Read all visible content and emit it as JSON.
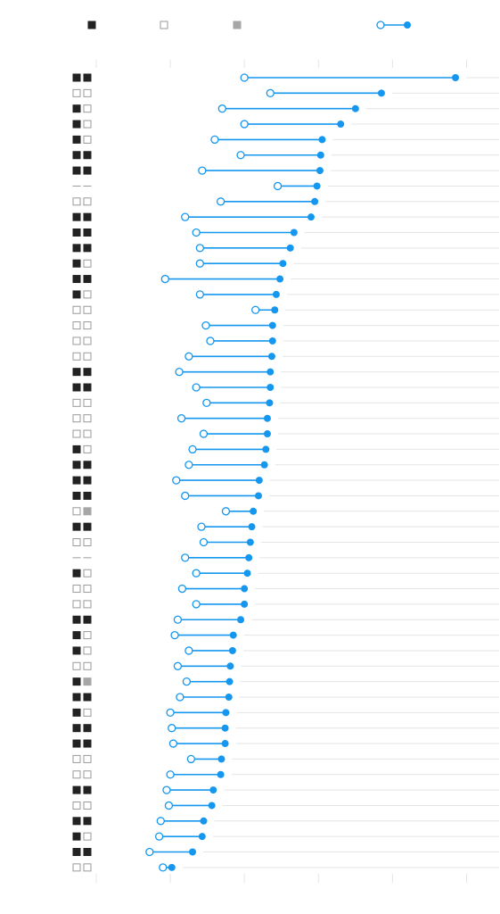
{
  "chart_data": {
    "type": "dot-range",
    "colors": {
      "accent": "#1597f0",
      "grid": "#e4e4e4",
      "filled": "#222222",
      "gray": "#a6a6a6",
      "empty_stroke": "#9a9a9a",
      "background": "#ffffff"
    },
    "legend": {
      "position": "top",
      "items": [
        {
          "swatch": "filled",
          "label": ""
        },
        {
          "swatch": "empty",
          "label": ""
        },
        {
          "swatch": "gray",
          "label": ""
        },
        {
          "swatch": "range",
          "label": ""
        }
      ]
    },
    "x_axis": {
      "min": 0,
      "max": 5.5,
      "ticks": [
        0,
        1,
        2,
        3,
        4,
        5
      ],
      "tick_labels": [
        "",
        "",
        "",
        "",
        "",
        ""
      ]
    },
    "rows": [
      {
        "start": 2.0,
        "end": 4.85,
        "m1": "f",
        "m2": "f"
      },
      {
        "start": 2.35,
        "end": 3.85,
        "m1": "e",
        "m2": "e"
      },
      {
        "start": 1.7,
        "end": 3.5,
        "m1": "f",
        "m2": "e"
      },
      {
        "start": 2.0,
        "end": 3.3,
        "m1": "f",
        "m2": "e"
      },
      {
        "start": 1.6,
        "end": 3.05,
        "m1": "f",
        "m2": "e"
      },
      {
        "start": 1.95,
        "end": 3.03,
        "m1": "f",
        "m2": "f"
      },
      {
        "start": 1.43,
        "end": 3.02,
        "m1": "f",
        "m2": "f"
      },
      {
        "start": 2.45,
        "end": 2.98,
        "m1": "d",
        "m2": "d"
      },
      {
        "start": 1.68,
        "end": 2.95,
        "m1": "e",
        "m2": "e"
      },
      {
        "start": 1.2,
        "end": 2.9,
        "m1": "f",
        "m2": "f"
      },
      {
        "start": 1.35,
        "end": 2.67,
        "m1": "f",
        "m2": "f"
      },
      {
        "start": 1.4,
        "end": 2.62,
        "m1": "f",
        "m2": "f"
      },
      {
        "start": 1.4,
        "end": 2.52,
        "m1": "f",
        "m2": "e"
      },
      {
        "start": 0.93,
        "end": 2.48,
        "m1": "f",
        "m2": "f"
      },
      {
        "start": 1.4,
        "end": 2.43,
        "m1": "f",
        "m2": "e"
      },
      {
        "start": 2.15,
        "end": 2.41,
        "m1": "e",
        "m2": "e"
      },
      {
        "start": 1.48,
        "end": 2.38,
        "m1": "e",
        "m2": "e"
      },
      {
        "start": 1.54,
        "end": 2.38,
        "m1": "e",
        "m2": "e"
      },
      {
        "start": 1.25,
        "end": 2.37,
        "m1": "e",
        "m2": "e"
      },
      {
        "start": 1.12,
        "end": 2.35,
        "m1": "f",
        "m2": "f"
      },
      {
        "start": 1.35,
        "end": 2.35,
        "m1": "f",
        "m2": "f"
      },
      {
        "start": 1.49,
        "end": 2.34,
        "m1": "e",
        "m2": "e"
      },
      {
        "start": 1.15,
        "end": 2.31,
        "m1": "e",
        "m2": "e"
      },
      {
        "start": 1.45,
        "end": 2.31,
        "m1": "e",
        "m2": "e"
      },
      {
        "start": 1.3,
        "end": 2.29,
        "m1": "f",
        "m2": "e"
      },
      {
        "start": 1.25,
        "end": 2.27,
        "m1": "f",
        "m2": "f"
      },
      {
        "start": 1.08,
        "end": 2.2,
        "m1": "f",
        "m2": "f"
      },
      {
        "start": 1.2,
        "end": 2.19,
        "m1": "f",
        "m2": "f"
      },
      {
        "start": 1.75,
        "end": 2.12,
        "m1": "e",
        "m2": "g"
      },
      {
        "start": 1.42,
        "end": 2.1,
        "m1": "f",
        "m2": "f"
      },
      {
        "start": 1.45,
        "end": 2.08,
        "m1": "e",
        "m2": "e"
      },
      {
        "start": 1.2,
        "end": 2.06,
        "m1": "d",
        "m2": "d"
      },
      {
        "start": 1.35,
        "end": 2.04,
        "m1": "f",
        "m2": "e"
      },
      {
        "start": 1.16,
        "end": 2.0,
        "m1": "e",
        "m2": "e"
      },
      {
        "start": 1.35,
        "end": 2.0,
        "m1": "e",
        "m2": "e"
      },
      {
        "start": 1.1,
        "end": 1.95,
        "m1": "f",
        "m2": "f"
      },
      {
        "start": 1.06,
        "end": 1.85,
        "m1": "f",
        "m2": "e"
      },
      {
        "start": 1.25,
        "end": 1.84,
        "m1": "f",
        "m2": "e"
      },
      {
        "start": 1.1,
        "end": 1.81,
        "m1": "e",
        "m2": "e"
      },
      {
        "start": 1.22,
        "end": 1.8,
        "m1": "f",
        "m2": "g"
      },
      {
        "start": 1.13,
        "end": 1.79,
        "m1": "f",
        "m2": "f"
      },
      {
        "start": 1.0,
        "end": 1.75,
        "m1": "f",
        "m2": "e"
      },
      {
        "start": 1.02,
        "end": 1.74,
        "m1": "f",
        "m2": "f"
      },
      {
        "start": 1.04,
        "end": 1.74,
        "m1": "f",
        "m2": "f"
      },
      {
        "start": 1.28,
        "end": 1.69,
        "m1": "e",
        "m2": "e"
      },
      {
        "start": 1.0,
        "end": 1.68,
        "m1": "e",
        "m2": "e"
      },
      {
        "start": 0.95,
        "end": 1.58,
        "m1": "f",
        "m2": "f"
      },
      {
        "start": 0.98,
        "end": 1.56,
        "m1": "e",
        "m2": "e"
      },
      {
        "start": 0.87,
        "end": 1.45,
        "m1": "f",
        "m2": "f"
      },
      {
        "start": 0.85,
        "end": 1.43,
        "m1": "f",
        "m2": "e"
      },
      {
        "start": 0.72,
        "end": 1.3,
        "m1": "f",
        "m2": "f"
      },
      {
        "start": 0.9,
        "end": 1.02,
        "m1": "e",
        "m2": "e"
      }
    ]
  }
}
